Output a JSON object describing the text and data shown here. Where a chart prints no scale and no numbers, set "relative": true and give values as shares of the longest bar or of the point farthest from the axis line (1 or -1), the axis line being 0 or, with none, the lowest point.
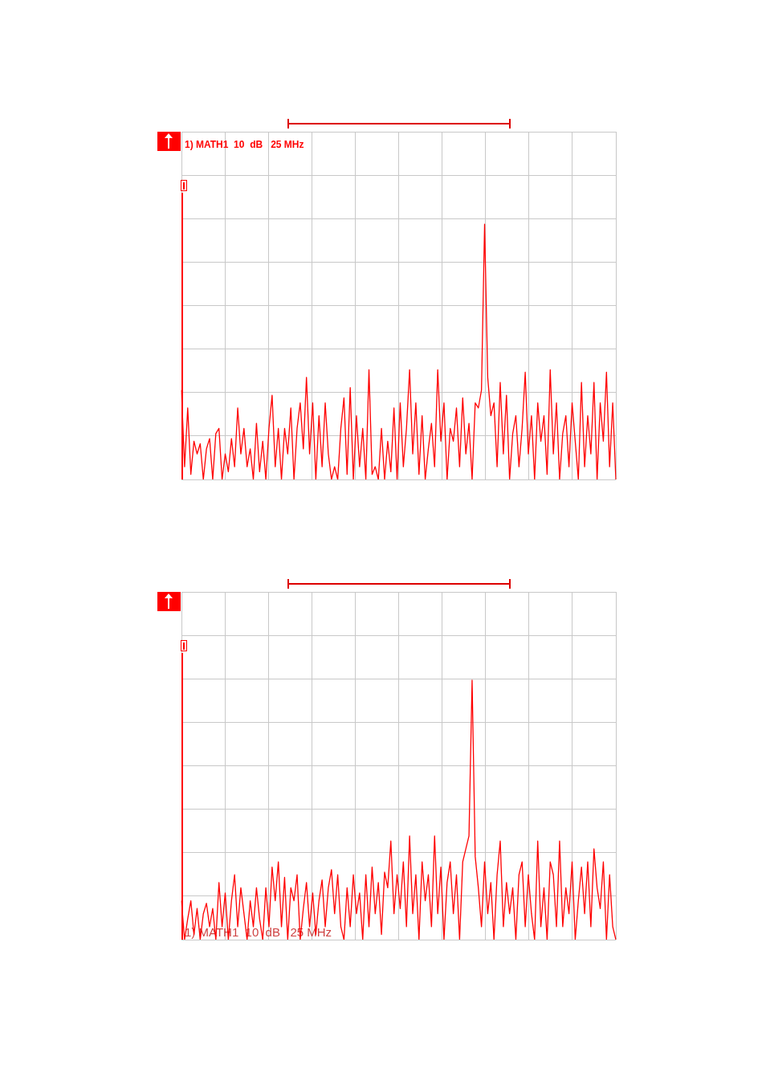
{
  "chart_data": [
    {
      "type": "line",
      "title": "1) MATH1  10  dB   25 MHz",
      "relative": true,
      "grid": true,
      "marker": "none",
      "categories": [
        null,
        null,
        null,
        null,
        null,
        null,
        null,
        null,
        null,
        null,
        null,
        null,
        null,
        null,
        null,
        null,
        null,
        null,
        null,
        null,
        null,
        null,
        null,
        null,
        null,
        null,
        null,
        null,
        null,
        null,
        null,
        null,
        null,
        null,
        null,
        null,
        null,
        null,
        null,
        null,
        null,
        null,
        null,
        null,
        null,
        null,
        null,
        null,
        null,
        null,
        null,
        null,
        null,
        null,
        null,
        null,
        null,
        null,
        null,
        null,
        null,
        null,
        null,
        null,
        null,
        null,
        null,
        null,
        null,
        null,
        null,
        null,
        null,
        null,
        null,
        null,
        null,
        null,
        null,
        null,
        null,
        null,
        null,
        null,
        null,
        null,
        null,
        null,
        null,
        null,
        null,
        null,
        null,
        null,
        null,
        null,
        null,
        null,
        null,
        null,
        null,
        null,
        null,
        null,
        null,
        null,
        null,
        null,
        null,
        null,
        null,
        null,
        null,
        null,
        null,
        null,
        null,
        null,
        null,
        null,
        null,
        null,
        null,
        null,
        null,
        null,
        null,
        null,
        null,
        null,
        null,
        null,
        null,
        null,
        null,
        null,
        null,
        null,
        null,
        null
      ],
      "series": [
        {
          "color": "#ff0000",
          "values": [
            0.35,
            0.05,
            0.28,
            0.02,
            0.15,
            0.1,
            0.14,
            0.0,
            0.12,
            0.16,
            0.0,
            0.18,
            0.2,
            0.0,
            0.1,
            0.03,
            0.16,
            0.05,
            0.28,
            0.1,
            0.2,
            0.05,
            0.12,
            0.0,
            0.22,
            0.03,
            0.15,
            0.0,
            0.2,
            0.33,
            0.05,
            0.2,
            0.0,
            0.2,
            0.1,
            0.28,
            0.0,
            0.2,
            0.3,
            0.12,
            0.4,
            0.1,
            0.3,
            0.0,
            0.25,
            0.05,
            0.3,
            0.1,
            0.0,
            0.05,
            0.0,
            0.2,
            0.32,
            0.02,
            0.36,
            0.0,
            0.25,
            0.05,
            0.2,
            0.0,
            0.43,
            0.02,
            0.05,
            0.0,
            0.2,
            0.0,
            0.15,
            0.03,
            0.28,
            0.0,
            0.3,
            0.05,
            0.2,
            0.43,
            0.1,
            0.3,
            0.02,
            0.25,
            0.0,
            0.12,
            0.22,
            0.05,
            0.43,
            0.15,
            0.3,
            0.0,
            0.2,
            0.15,
            0.28,
            0.05,
            0.32,
            0.1,
            0.22,
            0.0,
            0.3,
            0.28,
            0.35,
            1.0,
            0.4,
            0.25,
            0.3,
            0.05,
            0.38,
            0.1,
            0.33,
            0.0,
            0.18,
            0.25,
            0.05,
            0.2,
            0.42,
            0.1,
            0.25,
            0.0,
            0.3,
            0.15,
            0.25,
            0.02,
            0.43,
            0.1,
            0.3,
            0.0,
            0.18,
            0.25,
            0.05,
            0.3,
            0.15,
            0.0,
            0.38,
            0.05,
            0.25,
            0.1,
            0.38,
            0.0,
            0.3,
            0.15,
            0.42,
            0.05,
            0.3,
            0.0
          ]
        }
      ]
    },
    {
      "type": "line",
      "annotations": [
        "1) MATH1  10  dB   25 MHz"
      ],
      "relative": true,
      "grid": true,
      "marker": "none",
      "categories": [
        null,
        null,
        null,
        null,
        null,
        null,
        null,
        null,
        null,
        null,
        null,
        null,
        null,
        null,
        null,
        null,
        null,
        null,
        null,
        null,
        null,
        null,
        null,
        null,
        null,
        null,
        null,
        null,
        null,
        null,
        null,
        null,
        null,
        null,
        null,
        null,
        null,
        null,
        null,
        null,
        null,
        null,
        null,
        null,
        null,
        null,
        null,
        null,
        null,
        null,
        null,
        null,
        null,
        null,
        null,
        null,
        null,
        null,
        null,
        null,
        null,
        null,
        null,
        null,
        null,
        null,
        null,
        null,
        null,
        null,
        null,
        null,
        null,
        null,
        null,
        null,
        null,
        null,
        null,
        null,
        null,
        null,
        null,
        null,
        null,
        null,
        null,
        null,
        null,
        null,
        null,
        null,
        null,
        null,
        null,
        null,
        null,
        null,
        null,
        null,
        null,
        null,
        null,
        null,
        null,
        null,
        null,
        null,
        null,
        null,
        null,
        null,
        null,
        null,
        null,
        null,
        null,
        null,
        null,
        null,
        null,
        null,
        null,
        null,
        null,
        null,
        null,
        null,
        null,
        null,
        null,
        null,
        null,
        null,
        null,
        null,
        null,
        null,
        null,
        null
      ],
      "series": [
        {
          "color": "#ff0000",
          "values": [
            0.15,
            0.0,
            0.08,
            0.15,
            0.02,
            0.12,
            0.0,
            0.1,
            0.14,
            0.05,
            0.12,
            0.0,
            0.22,
            0.05,
            0.18,
            0.0,
            0.15,
            0.25,
            0.05,
            0.2,
            0.1,
            0.0,
            0.15,
            0.05,
            0.2,
            0.08,
            0.0,
            0.2,
            0.05,
            0.28,
            0.15,
            0.3,
            0.05,
            0.24,
            0.0,
            0.2,
            0.15,
            0.25,
            0.0,
            0.12,
            0.22,
            0.05,
            0.18,
            0.02,
            0.15,
            0.23,
            0.05,
            0.2,
            0.27,
            0.1,
            0.25,
            0.05,
            0.0,
            0.2,
            0.05,
            0.25,
            0.1,
            0.18,
            0.0,
            0.25,
            0.05,
            0.28,
            0.1,
            0.22,
            0.02,
            0.26,
            0.2,
            0.38,
            0.1,
            0.25,
            0.12,
            0.3,
            0.05,
            0.4,
            0.1,
            0.25,
            0.0,
            0.3,
            0.15,
            0.25,
            0.05,
            0.4,
            0.1,
            0.28,
            0.0,
            0.22,
            0.3,
            0.1,
            0.25,
            0.0,
            0.3,
            0.35,
            0.4,
            1.0,
            0.32,
            0.2,
            0.05,
            0.3,
            0.1,
            0.22,
            0.0,
            0.25,
            0.38,
            0.05,
            0.22,
            0.1,
            0.2,
            0.0,
            0.25,
            0.3,
            0.05,
            0.25,
            0.1,
            0.0,
            0.38,
            0.05,
            0.2,
            0.0,
            0.3,
            0.25,
            0.05,
            0.38,
            0.05,
            0.2,
            0.1,
            0.3,
            0.0,
            0.15,
            0.28,
            0.1,
            0.3,
            0.05,
            0.35,
            0.2,
            0.12,
            0.3,
            0.0,
            0.25,
            0.05,
            0.0
          ]
        }
      ]
    }
  ]
}
